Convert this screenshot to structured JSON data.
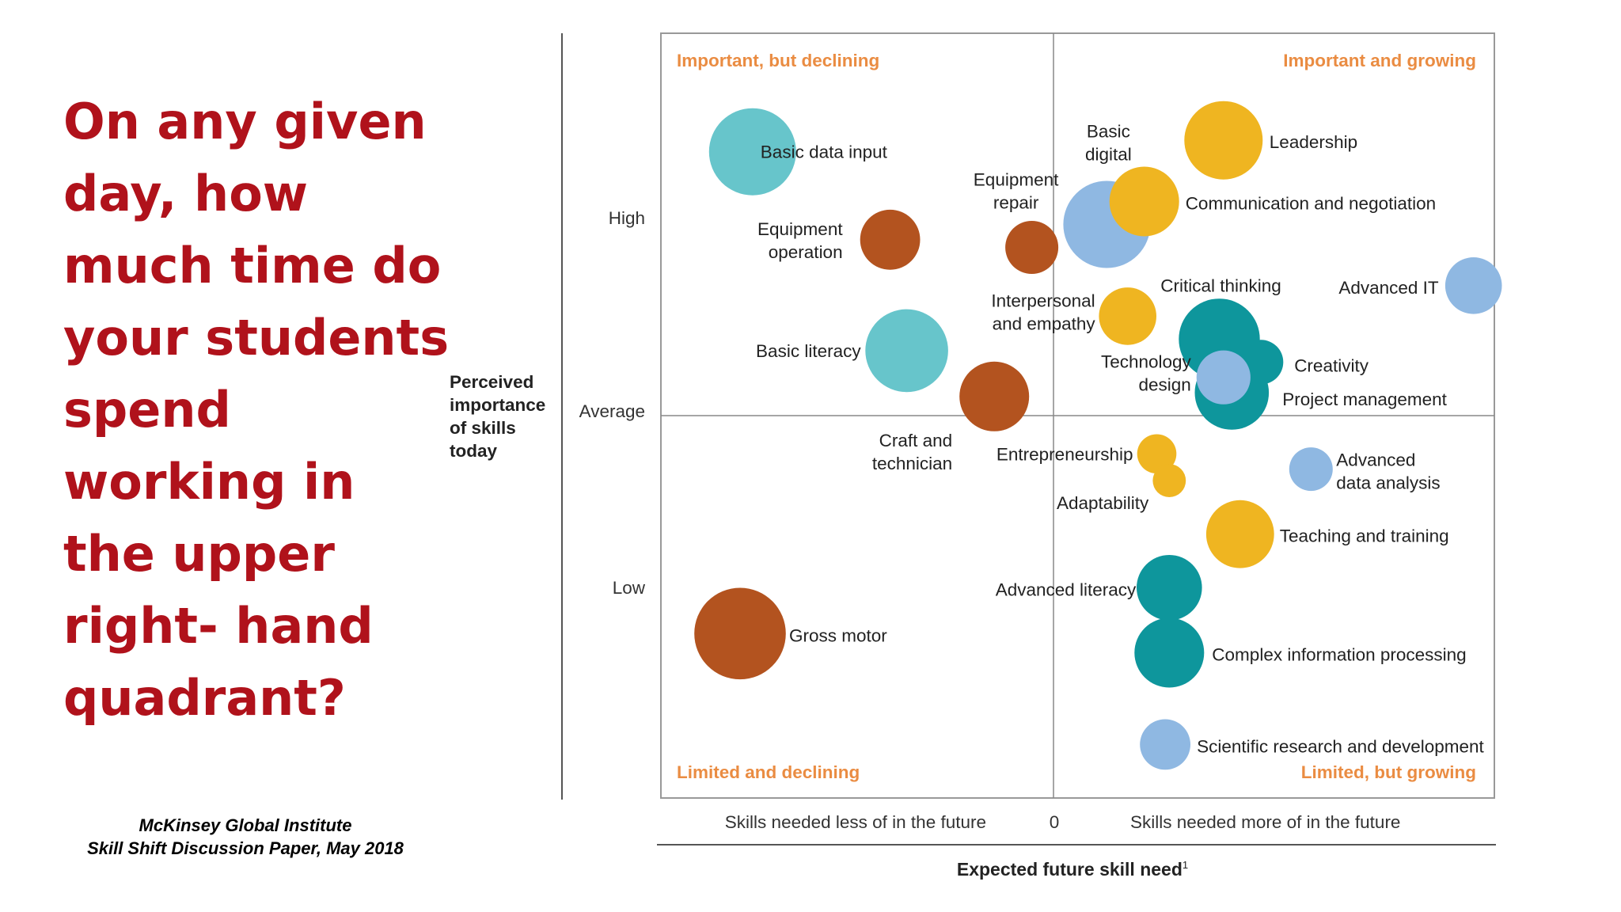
{
  "slide": {
    "question_lines": [
      "On any given",
      "day, how",
      "much time do",
      "your students",
      "spend",
      "working in",
      "the upper",
      "right- hand",
      "quadrant?"
    ],
    "citation_line1": "McKinsey Global Institute",
    "citation_line2": "Skill Shift Discussion Paper, May 2018"
  },
  "chart_data": {
    "type": "scatter",
    "title": "",
    "xlabel": "Expected future skill need",
    "xlabel_superscript": "1",
    "ylabel_lines": [
      "Perceived",
      "importance",
      "of skills",
      "today"
    ],
    "y_ticks": [
      "High",
      "Average",
      "Low"
    ],
    "x_ticks": {
      "left": "Skills needed less of in the future",
      "center": "0",
      "right": "Skills needed more of in the future"
    },
    "quadrants": {
      "top_left": "Important, but declining",
      "top_right": "Important and growing",
      "bottom_left": "Limited and declining",
      "bottom_right": "Limited, but growing"
    },
    "xlim": [
      -1,
      1
    ],
    "ylim": [
      -1,
      1
    ],
    "colors": {
      "light_teal": "#67c5cb",
      "brown": "#b3531f",
      "yellow": "#efb521",
      "blue": "#8fb8e2",
      "teal": "#0e969c",
      "quadrant_label": "#ea8c42",
      "question": "#b0121b"
    },
    "skills": [
      {
        "name": "Basic data input",
        "x": -0.78,
        "y": 0.69,
        "size": 1.0,
        "color": "light_teal"
      },
      {
        "name": "Equipment operation",
        "x": -0.45,
        "y": 0.46,
        "size": 0.69,
        "color": "brown"
      },
      {
        "name": "Equipment repair",
        "x": -0.11,
        "y": 0.44,
        "size": 0.61,
        "color": "brown"
      },
      {
        "name": "Basic digital",
        "x": 0.07,
        "y": 0.5,
        "size": 1.0,
        "color": "blue"
      },
      {
        "name": "Leadership",
        "x": 0.35,
        "y": 0.72,
        "size": 0.9,
        "color": "yellow"
      },
      {
        "name": "Communication and negotiation",
        "x": 0.16,
        "y": 0.56,
        "size": 0.8,
        "color": "yellow"
      },
      {
        "name": "Advanced IT",
        "x": 0.95,
        "y": 0.34,
        "size": 0.65,
        "color": "blue"
      },
      {
        "name": "Interpersonal and empathy",
        "x": 0.12,
        "y": 0.26,
        "size": 0.66,
        "color": "yellow"
      },
      {
        "name": "Critical thinking",
        "x": 0.34,
        "y": 0.2,
        "size": 0.93,
        "color": "teal"
      },
      {
        "name": "Project management",
        "x": 0.37,
        "y": 0.06,
        "size": 0.85,
        "color": "teal"
      },
      {
        "name": "Creativity",
        "x": 0.44,
        "y": 0.14,
        "size": 0.51,
        "color": "teal"
      },
      {
        "name": "Technology design",
        "x": 0.35,
        "y": 0.1,
        "size": 0.62,
        "color": "blue"
      },
      {
        "name": "Basic literacy",
        "x": -0.41,
        "y": 0.17,
        "size": 0.95,
        "color": "light_teal"
      },
      {
        "name": "Craft and technician",
        "x": -0.2,
        "y": 0.05,
        "size": 0.8,
        "color": "brown"
      },
      {
        "name": "Entrepreneurship",
        "x": 0.19,
        "y": -0.1,
        "size": 0.45,
        "color": "yellow"
      },
      {
        "name": "Adaptability",
        "x": 0.22,
        "y": -0.17,
        "size": 0.38,
        "color": "yellow"
      },
      {
        "name": "Advanced data analysis",
        "x": 0.56,
        "y": -0.14,
        "size": 0.5,
        "color": "blue"
      },
      {
        "name": "Teaching and training",
        "x": 0.39,
        "y": -0.31,
        "size": 0.78,
        "color": "yellow"
      },
      {
        "name": "Advanced literacy",
        "x": 0.22,
        "y": -0.45,
        "size": 0.75,
        "color": "teal"
      },
      {
        "name": "Gross motor",
        "x": -0.81,
        "y": -0.57,
        "size": 1.05,
        "color": "brown"
      },
      {
        "name": "Complex information processing",
        "x": 0.22,
        "y": -0.62,
        "size": 0.8,
        "color": "teal"
      },
      {
        "name": "Scientific research and development",
        "x": 0.21,
        "y": -0.86,
        "size": 0.58,
        "color": "blue"
      }
    ]
  }
}
